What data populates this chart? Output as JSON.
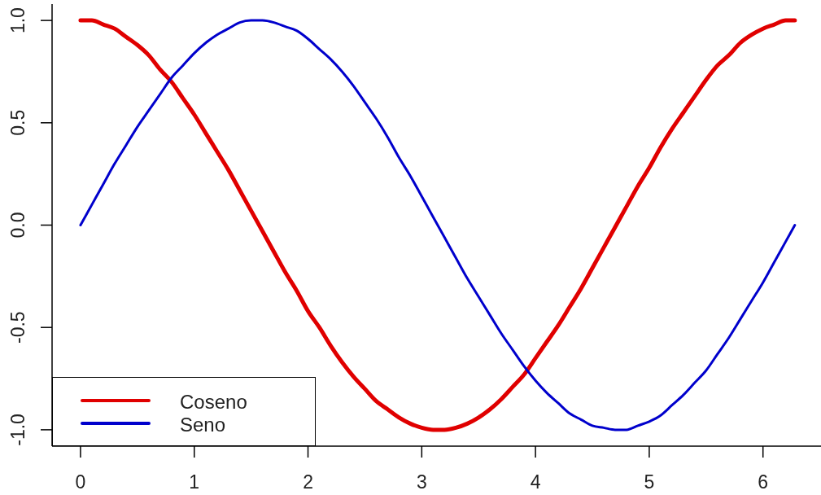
{
  "chart_data": {
    "type": "line",
    "x": [
      0,
      0.1,
      0.2,
      0.3,
      0.4,
      0.5,
      0.6,
      0.7,
      0.8,
      0.9,
      1,
      1.1,
      1.2,
      1.3,
      1.4,
      1.5,
      1.6,
      1.7,
      1.8,
      1.9,
      2,
      2.1,
      2.2,
      2.3,
      2.4,
      2.5,
      2.6,
      2.7,
      2.8,
      2.9,
      3,
      3.1,
      3.2,
      3.3,
      3.4,
      3.5,
      3.6,
      3.7,
      3.8,
      3.9,
      4,
      4.1,
      4.2,
      4.3,
      4.4,
      4.5,
      4.6,
      4.7,
      4.8,
      4.9,
      5,
      5.1,
      5.2,
      5.3,
      5.4,
      5.5,
      5.6,
      5.7,
      5.8,
      5.9,
      6,
      6.1,
      6.2,
      6.28
    ],
    "series": [
      {
        "name": "Coseno",
        "color": "#e00000",
        "values": [
          1,
          1,
          0.98,
          0.96,
          0.92,
          0.88,
          0.83,
          0.76,
          0.7,
          0.62,
          0.54,
          0.45,
          0.36,
          0.27,
          0.17,
          0.07,
          -0.03,
          -0.13,
          -0.23,
          -0.32,
          -0.42,
          -0.5,
          -0.59,
          -0.67,
          -0.74,
          -0.8,
          -0.86,
          -0.9,
          -0.94,
          -0.97,
          -0.99,
          -1,
          -1,
          -0.99,
          -0.97,
          -0.94,
          -0.9,
          -0.85,
          -0.79,
          -0.73,
          -0.65,
          -0.57,
          -0.49,
          -0.4,
          -0.31,
          -0.21,
          -0.11,
          -0.01,
          0.09,
          0.19,
          0.28,
          0.38,
          0.47,
          0.55,
          0.63,
          0.71,
          0.78,
          0.83,
          0.89,
          0.93,
          0.96,
          0.98,
          1,
          1
        ]
      },
      {
        "name": "Seno",
        "color": "#0000cc",
        "values": [
          0,
          0.1,
          0.2,
          0.3,
          0.39,
          0.48,
          0.56,
          0.64,
          0.72,
          0.78,
          0.84,
          0.89,
          0.93,
          0.96,
          0.99,
          1,
          1,
          0.99,
          0.97,
          0.95,
          0.91,
          0.86,
          0.81,
          0.75,
          0.68,
          0.6,
          0.52,
          0.43,
          0.33,
          0.24,
          0.14,
          0.04,
          -0.06,
          -0.16,
          -0.26,
          -0.35,
          -0.44,
          -0.53,
          -0.61,
          -0.69,
          -0.76,
          -0.82,
          -0.87,
          -0.92,
          -0.95,
          -0.98,
          -0.99,
          -1,
          -1,
          -0.98,
          -0.96,
          -0.93,
          -0.88,
          -0.83,
          -0.77,
          -0.71,
          -0.63,
          -0.55,
          -0.46,
          -0.37,
          -0.28,
          -0.18,
          -0.08,
          0
        ]
      }
    ],
    "xlim": [
      -0.25,
      6.51
    ],
    "xticks": [
      0,
      1,
      2,
      3,
      4,
      5,
      6
    ],
    "ylim": [
      -1.08,
      1.08
    ],
    "yticks": [
      {
        "value": -1,
        "label": "-1.0"
      },
      {
        "value": -0.5,
        "label": "-0.5"
      },
      {
        "value": 0,
        "label": "0.0"
      },
      {
        "value": 0.5,
        "label": "0.5"
      },
      {
        "value": 1,
        "label": "1.0"
      }
    ],
    "legend": "bottom left",
    "marker": "none",
    "line_style": "solid"
  }
}
